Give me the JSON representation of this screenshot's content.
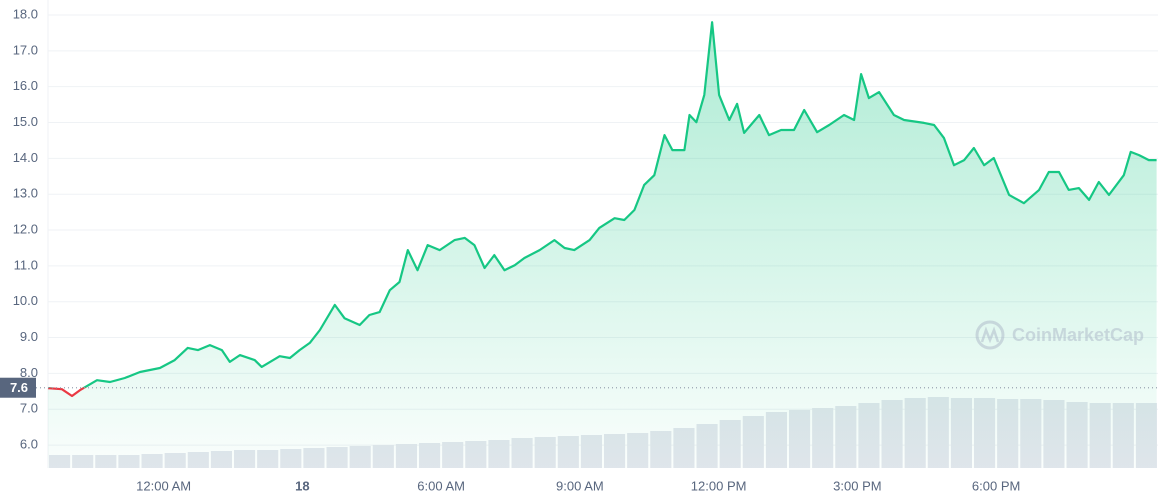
{
  "chart_data": {
    "type": "line",
    "watermark": "CoinMarketCap",
    "x": [
      0,
      0.3,
      0.52,
      0.69,
      1.06,
      1.34,
      1.66,
      1.99,
      2.42,
      2.74,
      3.02,
      3.24,
      3.5,
      3.76,
      3.93,
      4.15,
      4.47,
      4.62,
      5.01,
      5.23,
      5.44,
      5.66,
      5.88,
      6.2,
      6.41,
      6.74,
      6.95,
      7.17,
      7.39,
      7.6,
      7.78,
      7.99,
      8.21,
      8.47,
      8.79,
      9.01,
      9.22,
      9.44,
      9.65,
      9.87,
      10.09,
      10.3,
      10.63,
      10.95,
      11.17,
      11.38,
      11.71,
      11.92,
      12.25,
      12.46,
      12.68,
      12.89,
      13.11,
      13.33,
      13.5,
      13.76,
      13.87,
      14.02,
      14.19,
      14.36,
      14.51,
      14.73,
      14.9,
      15.05,
      15.38,
      15.59,
      15.85,
      16.13,
      16.35,
      16.63,
      16.89,
      17.21,
      17.43,
      17.58,
      17.75,
      17.97,
      18.29,
      18.51,
      18.94,
      19.16,
      19.37,
      19.59,
      19.81,
      20.02,
      20.24,
      20.45,
      20.78,
      21.1,
      21.43,
      21.64,
      21.86,
      22.07,
      22.29,
      22.51,
      22.72,
      22.94,
      23.26,
      23.41,
      23.59,
      23.8,
      23.97
    ],
    "series": [
      {
        "color": "#16c784",
        "down_color": "#ea3943",
        "values": [
          7.59,
          7.56,
          7.37,
          7.53,
          7.81,
          7.76,
          7.87,
          8.04,
          8.15,
          8.37,
          8.71,
          8.65,
          8.79,
          8.65,
          8.32,
          8.51,
          8.37,
          8.18,
          8.48,
          8.43,
          8.65,
          8.85,
          9.21,
          9.91,
          9.54,
          9.35,
          9.63,
          9.71,
          10.32,
          10.55,
          11.44,
          10.88,
          11.58,
          11.44,
          11.72,
          11.78,
          11.58,
          10.94,
          11.3,
          10.88,
          11.02,
          11.22,
          11.44,
          11.72,
          11.5,
          11.44,
          11.72,
          12.06,
          12.33,
          12.28,
          12.56,
          13.26,
          13.53,
          14.65,
          14.23,
          14.23,
          15.21,
          15.01,
          15.77,
          17.8,
          15.77,
          15.07,
          15.52,
          14.71,
          15.21,
          14.65,
          14.79,
          14.79,
          15.35,
          14.73,
          14.93,
          15.21,
          15.07,
          16.35,
          15.68,
          15.85,
          15.21,
          15.07,
          14.99,
          14.93,
          14.57,
          13.81,
          13.95,
          14.29,
          13.81,
          14.01,
          12.98,
          12.75,
          13.12,
          13.62,
          13.62,
          13.12,
          13.17,
          12.84,
          13.34,
          12.98,
          13.53,
          14.18,
          14.09,
          13.95,
          13.95
        ]
      }
    ],
    "reference": 7.6,
    "volume": {
      "color": "#e3e6ed",
      "ylim": [
        0,
        100
      ],
      "values": [
        13,
        13,
        13,
        13,
        14,
        15,
        16,
        17,
        18,
        18,
        19,
        20,
        21,
        22,
        23,
        24,
        25,
        26,
        27,
        28,
        30,
        31,
        32,
        33,
        34,
        35,
        37,
        40,
        44,
        48,
        52,
        56,
        58,
        60,
        62,
        65,
        68,
        70,
        71,
        70,
        70,
        69,
        69,
        68,
        66,
        65,
        65,
        65
      ]
    },
    "xlim": [
      0,
      24
    ],
    "xticks": [
      {
        "value": 2.5,
        "label": "12:00 AM"
      },
      {
        "value": 5.5,
        "label": "18"
      },
      {
        "value": 8.5,
        "label": "6:00 AM"
      },
      {
        "value": 11.5,
        "label": "9:00 AM"
      },
      {
        "value": 14.5,
        "label": "12:00 PM"
      },
      {
        "value": 17.5,
        "label": "3:00 PM"
      },
      {
        "value": 20.5,
        "label": "6:00 PM"
      }
    ],
    "ylim": [
      5.36,
      18.0
    ],
    "yticks": [
      {
        "value": 6,
        "label": "6.0"
      },
      {
        "value": 7,
        "label": "7.0"
      },
      {
        "value": 8,
        "label": "8.0"
      },
      {
        "value": 9,
        "label": "9.0"
      },
      {
        "value": 10,
        "label": "10.0"
      },
      {
        "value": 11,
        "label": "11.0"
      },
      {
        "value": 12,
        "label": "12.0"
      },
      {
        "value": 13,
        "label": "13.0"
      },
      {
        "value": 14,
        "label": "14.0"
      },
      {
        "value": 15,
        "label": "15.0"
      },
      {
        "value": 16,
        "label": "16.0"
      },
      {
        "value": 17,
        "label": "17.0"
      },
      {
        "value": 18,
        "label": "18.0"
      }
    ],
    "grid": true
  }
}
